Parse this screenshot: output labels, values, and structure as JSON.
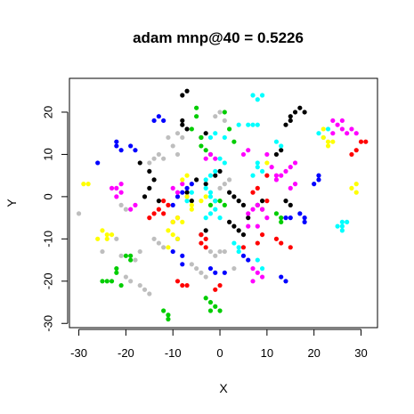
{
  "chart_data": {
    "type": "scatter",
    "title": "adam mnp@40 = 0.5226",
    "xlabel": "X",
    "ylabel": "Y",
    "xlim": [
      -32,
      33.5
    ],
    "ylim": [
      -31,
      28
    ],
    "xticks": [
      -30,
      -20,
      -10,
      0,
      10,
      20,
      30
    ],
    "yticks": [
      -30,
      -20,
      -10,
      0,
      10,
      20
    ],
    "grid": false,
    "legend": "none",
    "colors": {
      "black": "#000000",
      "red": "#ff0000",
      "green": "#00cd00",
      "blue": "#0000ff",
      "cyan": "#00ffff",
      "magenta": "#ff00ff",
      "yellow": "#ffff00",
      "gray": "#bebebe"
    },
    "series": [
      {
        "color": "black",
        "points": [
          [
            -8,
            24
          ],
          [
            -7,
            25
          ],
          [
            -8,
            18
          ],
          [
            -7,
            16
          ],
          [
            -8,
            17
          ],
          [
            -4,
            14
          ],
          [
            -3,
            15
          ],
          [
            -17,
            8
          ],
          [
            -15,
            6
          ],
          [
            -14,
            4
          ],
          [
            -5,
            4
          ],
          [
            -3,
            3
          ],
          [
            -1,
            5
          ],
          [
            0,
            6
          ],
          [
            -16,
            0
          ],
          [
            -15,
            2
          ],
          [
            -13,
            -1
          ],
          [
            -6,
            -1
          ],
          [
            -7,
            1
          ],
          [
            2,
            1
          ],
          [
            3,
            0
          ],
          [
            4,
            -1
          ],
          [
            5,
            -2
          ],
          [
            -4,
            -9
          ],
          [
            -3,
            -8
          ],
          [
            2,
            -6
          ],
          [
            3,
            -7
          ],
          [
            4,
            -8
          ],
          [
            5,
            -9
          ],
          [
            6,
            -5
          ],
          [
            8,
            -2
          ],
          [
            9,
            -1
          ],
          [
            12,
            10
          ],
          [
            13,
            11
          ],
          [
            14,
            17
          ],
          [
            15,
            18
          ],
          [
            15,
            19
          ],
          [
            16,
            20
          ],
          [
            17,
            21
          ],
          [
            18,
            20
          ],
          [
            14,
            -1
          ],
          [
            15,
            -2
          ]
        ]
      },
      {
        "color": "red",
        "points": [
          [
            -13,
            -3
          ],
          [
            -12,
            -4
          ],
          [
            -11,
            -2
          ],
          [
            -12,
            -1
          ],
          [
            -10,
            -6
          ],
          [
            -9,
            -5
          ],
          [
            -15,
            -5
          ],
          [
            -14,
            -4
          ],
          [
            -4,
            -9
          ],
          [
            -4,
            -11
          ],
          [
            -3,
            -10
          ],
          [
            -3,
            -12
          ],
          [
            -9,
            -20
          ],
          [
            -8,
            -21
          ],
          [
            -7,
            -21
          ],
          [
            -1,
            -22
          ],
          [
            0,
            -21
          ],
          [
            5,
            -12
          ],
          [
            8,
            -11
          ],
          [
            9,
            -9
          ],
          [
            12,
            -10
          ],
          [
            13,
            -11
          ],
          [
            15,
            -12
          ],
          [
            28,
            10
          ],
          [
            29,
            11
          ],
          [
            30,
            13
          ],
          [
            31,
            13
          ],
          [
            7,
            1
          ],
          [
            8,
            2
          ],
          [
            10,
            5
          ],
          [
            10,
            -1
          ],
          [
            9,
            -3
          ]
        ]
      },
      {
        "color": "green",
        "points": [
          [
            -5,
            21
          ],
          [
            -5,
            19
          ],
          [
            -6,
            16
          ],
          [
            -4,
            14
          ],
          [
            -4,
            12
          ],
          [
            -3,
            11
          ],
          [
            -2,
            10
          ],
          [
            1,
            20
          ],
          [
            2,
            16
          ],
          [
            3,
            13
          ],
          [
            -2,
            -2
          ],
          [
            -1,
            -1
          ],
          [
            0,
            -1
          ],
          [
            1,
            -2
          ],
          [
            -20,
            -14
          ],
          [
            -19,
            -14
          ],
          [
            -19,
            -15
          ],
          [
            -22,
            -17
          ],
          [
            -22,
            -18
          ],
          [
            -23,
            -20
          ],
          [
            -24,
            -20
          ],
          [
            -25,
            -20
          ],
          [
            -21,
            -21
          ],
          [
            -12,
            -27
          ],
          [
            -11,
            -28
          ],
          [
            -11,
            -29
          ],
          [
            -3,
            -24
          ],
          [
            -2,
            -25
          ],
          [
            -1,
            -26
          ],
          [
            0,
            -27
          ],
          [
            -2,
            -27
          ],
          [
            12,
            -4
          ],
          [
            13,
            -5
          ],
          [
            13,
            -6
          ]
        ]
      },
      {
        "color": "blue",
        "points": [
          [
            -22,
            13
          ],
          [
            -21,
            11
          ],
          [
            -22,
            12
          ],
          [
            -19,
            12
          ],
          [
            -18,
            11
          ],
          [
            -14,
            18
          ],
          [
            -13,
            19
          ],
          [
            -12,
            18
          ],
          [
            -26,
            8
          ],
          [
            -9,
            -10
          ],
          [
            -10,
            -13
          ],
          [
            -8,
            -14
          ],
          [
            -8,
            -16
          ],
          [
            -2,
            -17
          ],
          [
            -1,
            -18
          ],
          [
            1,
            -18
          ],
          [
            5,
            -14
          ],
          [
            6,
            -15
          ],
          [
            13,
            -19
          ],
          [
            14,
            -20
          ],
          [
            20,
            3
          ],
          [
            21,
            4
          ],
          [
            21,
            5
          ],
          [
            14,
            -5
          ],
          [
            15,
            -5
          ],
          [
            17,
            -4
          ],
          [
            18,
            -5
          ],
          [
            18,
            -6
          ],
          [
            -10,
            -2
          ],
          [
            -9,
            0
          ],
          [
            -8,
            1
          ],
          [
            -7,
            2
          ],
          [
            -6,
            3
          ]
        ]
      },
      {
        "color": "cyan",
        "points": [
          [
            7,
            24
          ],
          [
            8,
            23
          ],
          [
            9,
            24
          ],
          [
            -2,
            14
          ],
          [
            -1,
            15
          ],
          [
            1,
            14
          ],
          [
            4,
            17
          ],
          [
            6,
            17
          ],
          [
            7,
            17
          ],
          [
            8,
            17
          ],
          [
            -3,
            4
          ],
          [
            -2,
            5
          ],
          [
            -1,
            6
          ],
          [
            0,
            9
          ],
          [
            1,
            8
          ],
          [
            -3,
            2
          ],
          [
            -2,
            1
          ],
          [
            -2,
            0
          ],
          [
            -1,
            -1
          ],
          [
            -3,
            -5
          ],
          [
            -2,
            -4
          ],
          [
            -1,
            -3
          ],
          [
            0,
            -5
          ],
          [
            3,
            -11
          ],
          [
            4,
            -12
          ],
          [
            4,
            -13
          ],
          [
            7,
            5
          ],
          [
            8,
            7
          ],
          [
            8,
            8
          ],
          [
            9,
            6
          ],
          [
            21,
            15
          ],
          [
            22,
            14
          ],
          [
            23,
            16
          ],
          [
            12,
            13
          ],
          [
            13,
            12
          ],
          [
            25,
            -7
          ],
          [
            26,
            -6
          ],
          [
            26,
            -7
          ],
          [
            27,
            -6
          ],
          [
            26,
            -8
          ],
          [
            8,
            -15
          ],
          [
            9,
            -17
          ],
          [
            -7,
            -1
          ],
          [
            -6,
            1
          ]
        ]
      },
      {
        "color": "magenta",
        "points": [
          [
            -22,
            0
          ],
          [
            -21,
            1
          ],
          [
            -22,
            2
          ],
          [
            -21,
            3
          ],
          [
            -23,
            2
          ],
          [
            -18,
            -2
          ],
          [
            -19,
            -3
          ],
          [
            -10,
            2
          ],
          [
            -9,
            1
          ],
          [
            -8,
            3
          ],
          [
            -3,
            9
          ],
          [
            -2,
            10
          ],
          [
            -1,
            9
          ],
          [
            5,
            10
          ],
          [
            6,
            11
          ],
          [
            10,
            10
          ],
          [
            11,
            7
          ],
          [
            12,
            5
          ],
          [
            12,
            4
          ],
          [
            13,
            5
          ],
          [
            14,
            6
          ],
          [
            15,
            7
          ],
          [
            16,
            8
          ],
          [
            15,
            2
          ],
          [
            16,
            3
          ],
          [
            6,
            -4
          ],
          [
            7,
            -3
          ],
          [
            8,
            -2
          ],
          [
            9,
            -3
          ],
          [
            7,
            -17
          ],
          [
            8,
            -18
          ],
          [
            9,
            -19
          ],
          [
            7,
            -20
          ],
          [
            24,
            18
          ],
          [
            25,
            17
          ],
          [
            26,
            16
          ],
          [
            27,
            15
          ],
          [
            28,
            16
          ],
          [
            29,
            15
          ],
          [
            24,
            15
          ],
          [
            26,
            18
          ],
          [
            6,
            -7
          ],
          [
            8,
            -7
          ],
          [
            10,
            -5
          ]
        ]
      },
      {
        "color": "yellow",
        "points": [
          [
            -29,
            3
          ],
          [
            -28,
            3
          ],
          [
            -25,
            -8
          ],
          [
            -24,
            -9
          ],
          [
            -24,
            -10
          ],
          [
            -23,
            -9
          ],
          [
            -26,
            -10
          ],
          [
            -11,
            -8
          ],
          [
            -10,
            -9
          ],
          [
            -11,
            -12
          ],
          [
            -9,
            -10
          ],
          [
            -10,
            -6
          ],
          [
            -9,
            -5
          ],
          [
            -8,
            -6
          ],
          [
            -6,
            -2
          ],
          [
            -6,
            -3
          ],
          [
            -7,
            0
          ],
          [
            -4,
            -1
          ],
          [
            -3,
            0
          ],
          [
            22,
            16
          ],
          [
            22,
            14
          ],
          [
            23,
            13
          ],
          [
            23,
            12
          ],
          [
            24,
            13
          ],
          [
            28,
            2
          ],
          [
            29,
            3
          ],
          [
            29,
            1
          ],
          [
            -8,
            4
          ],
          [
            -7,
            5
          ],
          [
            10,
            8
          ]
        ]
      },
      {
        "color": "gray",
        "points": [
          [
            -30,
            -4
          ],
          [
            -25,
            -13
          ],
          [
            -22,
            -10
          ],
          [
            -17,
            -13
          ],
          [
            -18,
            -15
          ],
          [
            -21,
            -14
          ],
          [
            -20,
            -19
          ],
          [
            -19,
            -20
          ],
          [
            -17,
            -21
          ],
          [
            -16,
            -22
          ],
          [
            -15,
            -23
          ],
          [
            -6,
            -16
          ],
          [
            -5,
            -17
          ],
          [
            -4,
            -18
          ],
          [
            -3,
            -19
          ],
          [
            -2,
            -13
          ],
          [
            -1,
            -14
          ],
          [
            0,
            -13
          ],
          [
            1,
            -13
          ],
          [
            3,
            -17
          ],
          [
            -14,
            -10
          ],
          [
            -13,
            -11
          ],
          [
            -12,
            -12
          ],
          [
            -15,
            8
          ],
          [
            -14,
            9
          ],
          [
            -13,
            10
          ],
          [
            -12,
            9
          ],
          [
            -11,
            14
          ],
          [
            -10,
            12
          ],
          [
            -9,
            10
          ],
          [
            -9,
            15
          ],
          [
            -8,
            14
          ],
          [
            -1,
            19
          ],
          [
            0,
            20
          ],
          [
            1,
            18
          ],
          [
            0,
            2
          ],
          [
            1,
            3
          ],
          [
            2,
            4
          ],
          [
            -21,
            -2
          ],
          [
            -20,
            -3
          ]
        ]
      }
    ]
  }
}
